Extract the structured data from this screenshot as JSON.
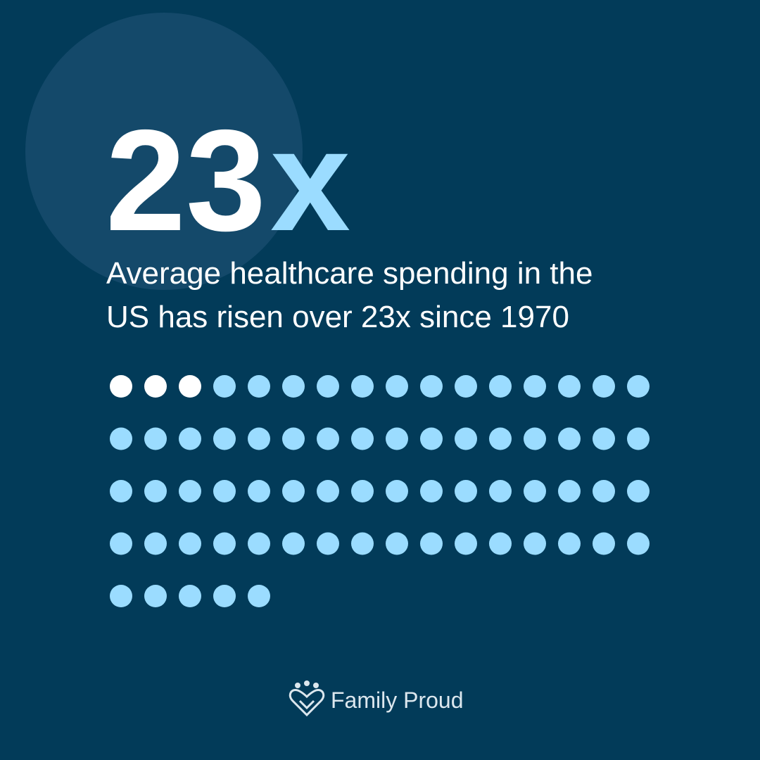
{
  "headline": {
    "number": "23",
    "suffix": "x"
  },
  "description": [
    "Average healthcare spending in the",
    "US has risen over 23x since 1970"
  ],
  "dot_grid": {
    "highlighted": 3,
    "total": 69
  },
  "brand": "Family Proud"
}
